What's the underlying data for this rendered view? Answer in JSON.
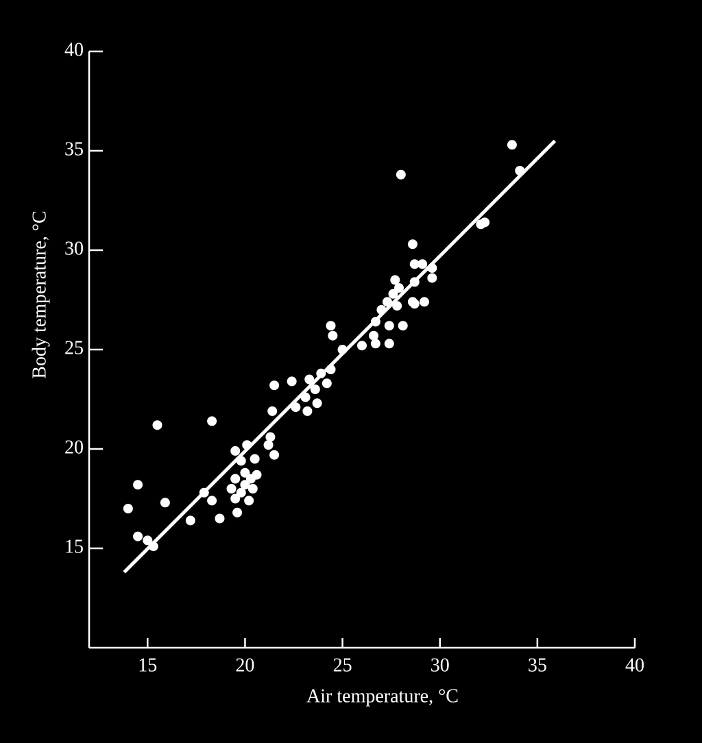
{
  "chart_data": {
    "type": "scatter",
    "x_label": "Air temperature, °C",
    "y_label": "Body temperature, °C",
    "color": "#ffffff",
    "x": [
      14.0,
      14.5,
      14.5,
      15.0,
      15.3,
      15.5,
      15.9,
      17.2,
      17.9,
      18.3,
      18.3,
      18.7,
      19.5,
      19.3,
      19.5,
      19.6,
      19.5,
      19.8,
      20.0,
      20.1,
      20.3,
      20.4,
      20.6,
      20.5,
      20.2,
      20.0,
      19.8,
      21.3,
      21.2,
      21.5,
      21.4,
      21.5,
      22.4,
      22.6,
      23.2,
      23.1,
      23.3,
      23.7,
      23.6,
      23.9,
      24.2,
      24.4,
      24.4,
      24.5,
      25.0,
      26.0,
      26.6,
      26.7,
      26.7,
      27.0,
      27.4,
      27.4,
      27.3,
      27.6,
      27.7,
      27.9,
      27.8,
      28.0,
      28.1,
      28.6,
      28.7,
      28.6,
      28.7,
      28.7,
      29.1,
      29.2,
      29.6,
      29.6,
      32.1,
      32.3,
      33.7,
      34.1
    ],
    "values": [
      17.0,
      18.2,
      15.6,
      15.4,
      15.1,
      21.2,
      17.3,
      16.4,
      17.8,
      17.4,
      21.4,
      16.5,
      19.9,
      18.0,
      17.5,
      16.8,
      18.5,
      19.4,
      18.8,
      20.2,
      18.5,
      18.0,
      18.7,
      19.5,
      17.4,
      18.2,
      17.8,
      20.6,
      20.2,
      19.7,
      21.9,
      23.2,
      23.4,
      22.1,
      21.9,
      22.6,
      23.5,
      22.3,
      23.0,
      23.8,
      23.3,
      24.0,
      26.2,
      25.7,
      25.0,
      25.2,
      25.7,
      25.3,
      26.4,
      27.0,
      26.2,
      25.3,
      27.4,
      27.8,
      28.5,
      28.1,
      27.2,
      33.8,
      26.2,
      27.4,
      27.3,
      30.3,
      29.3,
      28.4,
      29.3,
      27.4,
      28.6,
      29.1,
      31.3,
      31.4,
      35.3,
      34.0
    ],
    "fit_line": {
      "x": [
        13.8,
        35.9
      ],
      "values": [
        13.8,
        35.5
      ]
    },
    "xlim": [
      12,
      40
    ],
    "xticks": [
      15,
      20,
      25,
      30,
      35,
      40
    ],
    "ylim": [
      10,
      40
    ],
    "yticks": [
      15,
      20,
      25,
      30,
      35,
      40
    ]
  }
}
